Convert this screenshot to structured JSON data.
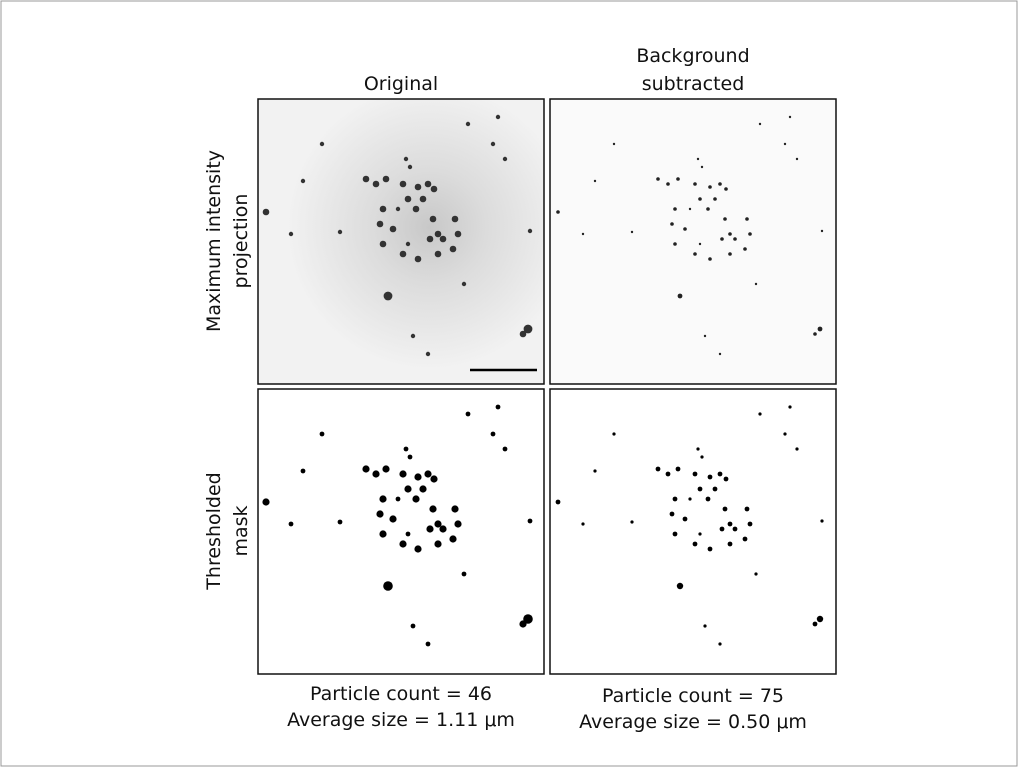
{
  "column_headers": [
    "Original",
    "Background",
    "subtracted"
  ],
  "row_labels": {
    "projection": [
      "Maximum intensity",
      "projection"
    ],
    "mask": [
      "Thresholded",
      "mask"
    ]
  },
  "captions": {
    "original": [
      "Particle count =  46",
      "Average size = 1.11 μm"
    ],
    "background_subtracted": [
      "Particle count =  75",
      "Average size = 0.50 μm"
    ]
  }
}
